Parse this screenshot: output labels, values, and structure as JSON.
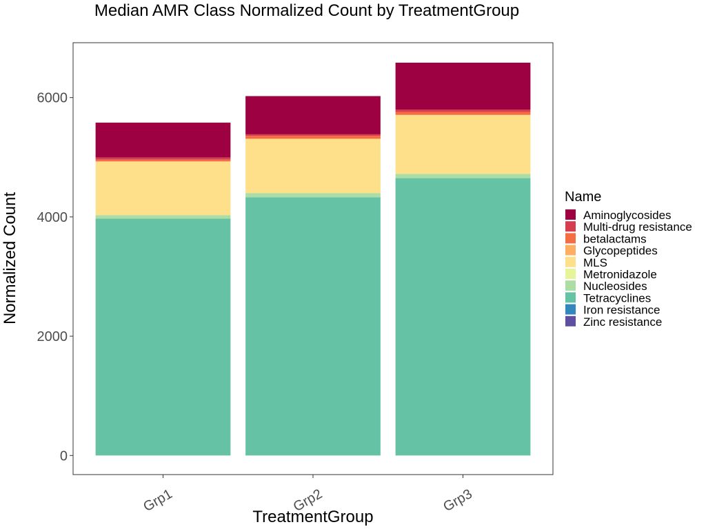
{
  "chart_data": {
    "type": "bar",
    "stacked": true,
    "title": "Median AMR Class Normalized Count by TreatmentGroup",
    "xlabel": "TreatmentGroup",
    "ylabel": "Normalized Count",
    "categories": [
      "Grp1",
      "Grp2",
      "Grp3"
    ],
    "y_ticks": [
      0,
      2000,
      4000,
      6000
    ],
    "y_tick_labels": [
      "0",
      "2000",
      "4000",
      "6000"
    ],
    "ylim": [
      -320,
      6920
    ],
    "grid": false,
    "legend": {
      "title": "Name",
      "position": "right",
      "entries": [
        {
          "name": "Aminoglycosides",
          "color": "#9E0142"
        },
        {
          "name": "Multi-drug resistance",
          "color": "#D53E4F"
        },
        {
          "name": "betalactams",
          "color": "#F46D43"
        },
        {
          "name": "Glycopeptides",
          "color": "#FDAE61"
        },
        {
          "name": "MLS",
          "color": "#FEE08B"
        },
        {
          "name": "Metronidazole",
          "color": "#E6F598"
        },
        {
          "name": "Nucleosides",
          "color": "#ABDDA4"
        },
        {
          "name": "Tetracyclines",
          "color": "#66C2A5"
        },
        {
          "name": "Iron resistance",
          "color": "#3288BD"
        },
        {
          "name": "Zinc resistance",
          "color": "#5E4FA2"
        }
      ]
    },
    "series": [
      {
        "name": "Aminoglycosides",
        "color": "#9E0142",
        "values": [
          585,
          640,
          785
        ]
      },
      {
        "name": "Multi-drug resistance",
        "color": "#D53E4F",
        "values": [
          35,
          25,
          40
        ]
      },
      {
        "name": "betalactams",
        "color": "#F46D43",
        "values": [
          30,
          50,
          50
        ]
      },
      {
        "name": "Glycopeptides",
        "color": "#FDAE61",
        "values": [
          0,
          0,
          0
        ]
      },
      {
        "name": "MLS",
        "color": "#FEE08B",
        "values": [
          900,
          910,
          990
        ]
      },
      {
        "name": "Metronidazole",
        "color": "#E6F598",
        "values": [
          0,
          0,
          0
        ]
      },
      {
        "name": "Nucleosides",
        "color": "#ABDDA4",
        "values": [
          60,
          70,
          70
        ]
      },
      {
        "name": "Tetracyclines",
        "color": "#66C2A5",
        "values": [
          3970,
          4330,
          4650
        ]
      },
      {
        "name": "Iron resistance",
        "color": "#3288BD",
        "values": [
          0,
          0,
          0
        ]
      },
      {
        "name": "Zinc resistance",
        "color": "#5E4FA2",
        "values": [
          0,
          0,
          0
        ]
      }
    ]
  }
}
